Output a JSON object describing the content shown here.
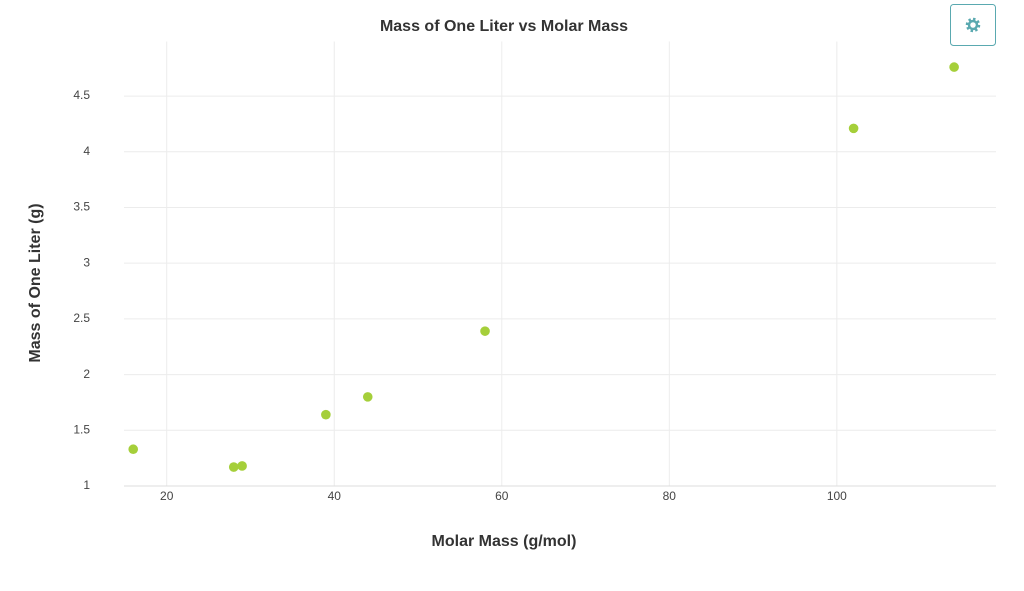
{
  "chart_data": {
    "type": "scatter",
    "title": "Mass of One Liter vs Molar Mass",
    "x_label": "Molar Mass (g/mol)",
    "y_label": "Mass of One Liter (g)",
    "x": [
      16,
      28,
      29,
      39,
      44,
      58,
      102,
      114
    ],
    "values": [
      1.33,
      1.17,
      1.18,
      1.64,
      1.8,
      2.39,
      4.21,
      4.76
    ],
    "color": "#a5cf3a",
    "xlim": [
      14.9,
      119
    ],
    "ylim": [
      1,
      4.9
    ],
    "xticks": [
      20,
      40,
      60,
      80,
      100
    ],
    "yticks": [
      1,
      1.5,
      2,
      2.5,
      3,
      3.5,
      4,
      4.5
    ],
    "grid": true
  }
}
